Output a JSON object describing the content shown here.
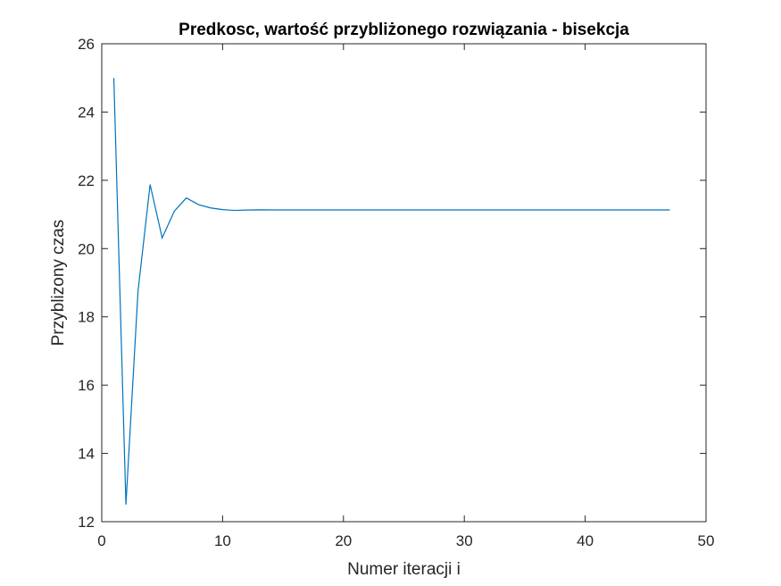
{
  "chart_data": {
    "type": "line",
    "title": "Predkosc, wartość przybliżonego rozwiązania - bisekcja",
    "xlabel": "Numer iteracji i",
    "ylabel": "Przyblizony czas",
    "xlim": [
      0,
      50
    ],
    "ylim": [
      12,
      26
    ],
    "xticks": [
      0,
      10,
      20,
      30,
      40,
      50
    ],
    "yticks": [
      12,
      14,
      16,
      18,
      20,
      22,
      24,
      26
    ],
    "grid": false,
    "line_color": "#0072BD",
    "series": [
      {
        "x": [
          1,
          2,
          3,
          4,
          5,
          6,
          7,
          8,
          9,
          10,
          11,
          12,
          13,
          14,
          15,
          16,
          17,
          18,
          19,
          20,
          21,
          22,
          23,
          24,
          25,
          26,
          27,
          28,
          29,
          30,
          31,
          32,
          33,
          34,
          35,
          36,
          37,
          38,
          39,
          40,
          41,
          42,
          43,
          44,
          45,
          46,
          47
        ],
        "values": [
          25,
          12.5,
          18.75,
          21.875,
          20.3125,
          21.09375,
          21.484375,
          21.2890625,
          21.19140625,
          21.142578125,
          21.118164,
          21.130371,
          21.136475,
          21.133423,
          21.131897,
          21.131897,
          21.131897,
          21.131897,
          21.131897,
          21.131897,
          21.131897,
          21.131897,
          21.131897,
          21.131897,
          21.131897,
          21.131897,
          21.131897,
          21.131897,
          21.131897,
          21.131897,
          21.131897,
          21.131897,
          21.131897,
          21.131897,
          21.131897,
          21.131897,
          21.131897,
          21.131897,
          21.131897,
          21.131897,
          21.131897,
          21.131897,
          21.131897,
          21.131897,
          21.131897,
          21.131897,
          21.131897
        ]
      }
    ]
  }
}
